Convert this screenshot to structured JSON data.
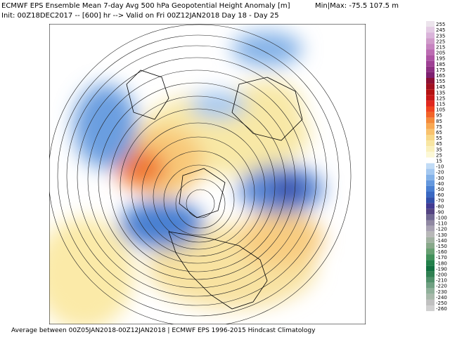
{
  "header": {
    "title": "ECMWF EPS Ensemble Mean 7-day Avg 500 hPa Geopotential Height Anomaly [m]",
    "init": "Init: 00Z18DEC2017 -- [600] hr --> Valid on Fri 00Z12JAN2018  Day 18 - Day 25",
    "minmax": "Min|Max: -75.5  107.5 m"
  },
  "colorbar": [
    {
      "value": 255,
      "color": "#ece4ec"
    },
    {
      "value": 245,
      "color": "#e4cce4"
    },
    {
      "value": 235,
      "color": "#dab4da"
    },
    {
      "value": 225,
      "color": "#d09cca"
    },
    {
      "value": 215,
      "color": "#c684c0"
    },
    {
      "value": 205,
      "color": "#bc6cb2"
    },
    {
      "value": 195,
      "color": "#ae54a4"
    },
    {
      "value": 185,
      "color": "#9e4094"
    },
    {
      "value": 175,
      "color": "#8e3082"
    },
    {
      "value": 165,
      "color": "#7e2070"
    },
    {
      "value": 155,
      "color": "#8c1034"
    },
    {
      "value": 145,
      "color": "#a01020"
    },
    {
      "value": 135,
      "color": "#b41212"
    },
    {
      "value": 125,
      "color": "#c81818"
    },
    {
      "value": 115,
      "color": "#e02820"
    },
    {
      "value": 105,
      "color": "#f04420"
    },
    {
      "value": 95,
      "color": "#f26428"
    },
    {
      "value": 85,
      "color": "#f48a3a"
    },
    {
      "value": 75,
      "color": "#f8a852"
    },
    {
      "value": 65,
      "color": "#f8c26e"
    },
    {
      "value": 55,
      "color": "#f8d888"
    },
    {
      "value": 45,
      "color": "#f8e6a2"
    },
    {
      "value": 35,
      "color": "#faf0bc"
    },
    {
      "value": 25,
      "color": "#fcf8d6"
    },
    {
      "value": 15,
      "color": "#ffffff"
    },
    {
      "value": -10,
      "color": "#c2dcf6"
    },
    {
      "value": -20,
      "color": "#a4c8f0"
    },
    {
      "value": -30,
      "color": "#84b2e8"
    },
    {
      "value": -40,
      "color": "#6498de"
    },
    {
      "value": -50,
      "color": "#4a80d2"
    },
    {
      "value": -60,
      "color": "#3a68c2"
    },
    {
      "value": -70,
      "color": "#3250aa"
    },
    {
      "value": -80,
      "color": "#423a92"
    },
    {
      "value": -90,
      "color": "#544482"
    },
    {
      "value": -100,
      "color": "#706892"
    },
    {
      "value": -110,
      "color": "#9088a2"
    },
    {
      "value": -120,
      "color": "#a8a2b2"
    },
    {
      "value": -130,
      "color": "#b8b8b8"
    },
    {
      "value": -140,
      "color": "#a2b2a2"
    },
    {
      "value": -150,
      "color": "#88a88a"
    },
    {
      "value": -160,
      "color": "#68a072"
    },
    {
      "value": -170,
      "color": "#42905a"
    },
    {
      "value": -180,
      "color": "#22804a"
    },
    {
      "value": -190,
      "color": "#127040"
    },
    {
      "value": -200,
      "color": "#308052"
    },
    {
      "value": -210,
      "color": "#50906a"
    },
    {
      "value": -220,
      "color": "#70a082"
    },
    {
      "value": -230,
      "color": "#90b09a"
    },
    {
      "value": -240,
      "color": "#a8b8aa"
    },
    {
      "value": -250,
      "color": "#c0c0c0"
    },
    {
      "value": -260,
      "color": "#d0d0d0"
    }
  ],
  "footer": "Average between 00Z05JAN2018-00Z12JAN2018 | ECMWF EPS 1996-2015 Hindcast Climatology"
}
